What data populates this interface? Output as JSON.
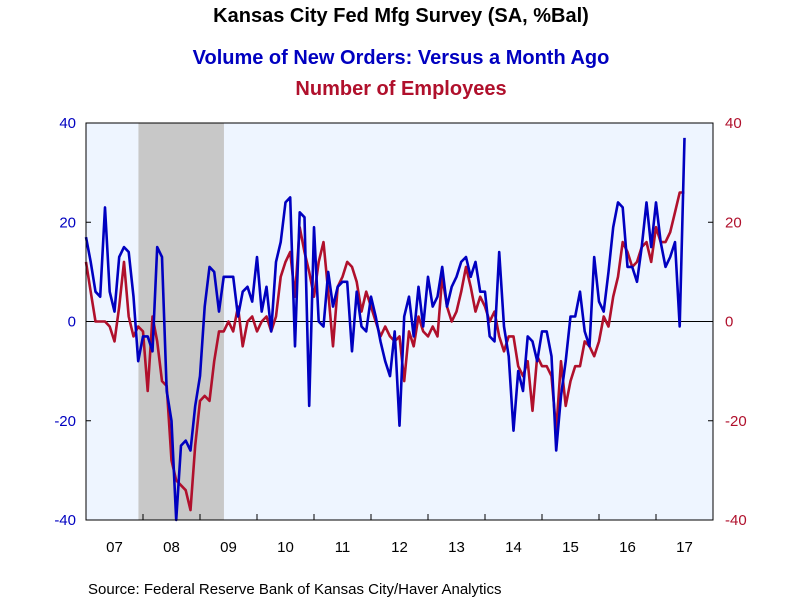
{
  "chart_data": {
    "type": "line",
    "title": "Kansas City Fed Mfg Survey (SA, %Bal)",
    "series_titles": [
      "Volume of New Orders: Versus a Month Ago",
      "Number of Employees"
    ],
    "source": "Source:  Federal Reserve Bank of Kansas City/Haver Analytics",
    "x_tick_labels": [
      "07",
      "08",
      "09",
      "10",
      "11",
      "12",
      "13",
      "14",
      "15",
      "16",
      "17"
    ],
    "y_left": {
      "ylim": [
        -40,
        40
      ],
      "ticks": [
        "-40",
        "-20",
        "0",
        "20",
        "40"
      ]
    },
    "y_right": {
      "ylim": [
        -40,
        40
      ],
      "ticks": [
        "-40",
        "-20",
        "0",
        "20",
        "40"
      ]
    },
    "x_range": [
      2007.0,
      2018.0
    ],
    "recession_shading": {
      "start": 2007.92,
      "end": 2009.42,
      "color": "#c8c8c8"
    },
    "plot_background": "#eef5ff",
    "series": [
      {
        "name": "Volume of New Orders: Versus a Month Ago",
        "color": "#0000c0",
        "start": 2007.0,
        "step": 0.08333,
        "values": [
          17,
          12,
          6,
          5,
          23,
          6,
          2,
          13,
          15,
          14,
          5,
          -8,
          -3,
          -3,
          -6,
          15,
          13,
          -14,
          -20,
          -40,
          -25,
          -24,
          -26,
          -17,
          -11,
          3,
          11,
          10,
          2,
          9,
          9,
          9,
          1,
          6,
          7,
          4,
          13,
          2,
          7,
          -2,
          12,
          16,
          24,
          25,
          -5,
          22,
          21,
          -17,
          19,
          0,
          -1,
          10,
          3,
          7,
          8,
          8,
          -6,
          6,
          -1,
          -2,
          5,
          1,
          -4,
          -8,
          -11,
          -2,
          -21,
          1,
          5,
          -3,
          7,
          -1,
          9,
          3,
          5,
          11,
          3,
          7,
          9,
          12,
          13,
          9,
          12,
          6,
          6,
          -3,
          -4,
          14,
          -1,
          -7,
          -22,
          -10,
          -14,
          -3,
          -4,
          -8,
          -2,
          -2,
          -7,
          -26,
          -15,
          -8,
          1,
          1,
          6,
          -2,
          -5,
          13,
          4,
          2,
          10,
          19,
          24,
          23,
          11,
          11,
          8,
          15,
          24,
          15,
          24,
          16,
          11,
          13,
          16,
          -1,
          37
        ]
      },
      {
        "name": "Number of Employees",
        "color": "#b0102c",
        "start": 2007.0,
        "step": 0.08333,
        "values": [
          12,
          6,
          0,
          0,
          0,
          -1,
          -4,
          3,
          12,
          1,
          -3,
          -1,
          -2,
          -14,
          1,
          -4,
          -12,
          -13,
          -28,
          -32,
          -33,
          -34,
          -38,
          -25,
          -16,
          -15,
          -16,
          -8,
          -2,
          -2,
          0,
          -2,
          3,
          -5,
          0,
          1,
          -2,
          0,
          1,
          -2,
          1,
          9,
          12,
          14,
          5,
          19,
          14,
          10,
          5,
          12,
          16,
          6,
          -5,
          7,
          9,
          12,
          11,
          8,
          2,
          6,
          3,
          0,
          -3,
          -1,
          -3,
          -4,
          -3,
          -12,
          -2,
          -5,
          1,
          -2,
          -3,
          -1,
          -3,
          9,
          3,
          0,
          2,
          6,
          11,
          7,
          2,
          5,
          3,
          0,
          2,
          -3,
          -6,
          -3,
          -3,
          -9,
          -11,
          -8,
          -18,
          -7,
          -9,
          -9,
          -11,
          -22,
          -8,
          -17,
          -12,
          -9,
          -9,
          -4,
          -5,
          -7,
          -4,
          1,
          -1,
          5,
          9,
          16,
          14,
          11,
          12,
          15,
          16,
          12,
          19,
          16,
          16,
          18,
          22,
          26,
          26
        ]
      }
    ]
  }
}
